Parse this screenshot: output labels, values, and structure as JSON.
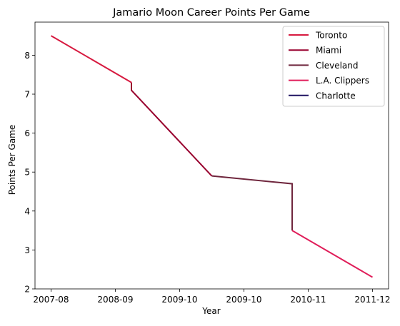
{
  "chart_data": {
    "type": "line",
    "title": "Jamario Moon Career Points Per Game",
    "xlabel": "Year",
    "ylabel": "Points Per Game",
    "x_tick_labels": [
      "2007-08",
      "2008-09",
      "2009-10",
      "2009-10",
      "2010-11",
      "2011-12"
    ],
    "ylim": [
      2,
      8.85
    ],
    "y_ticks": [
      2,
      3,
      4,
      5,
      6,
      7,
      8
    ],
    "grid": false,
    "legend_position": "top-right",
    "series": [
      {
        "name": "Toronto",
        "color": "#d7193f",
        "x": [
          0,
          2.5
        ],
        "y": [
          8.5,
          7.3
        ]
      },
      {
        "name": "Miami",
        "color": "#98002e",
        "x": [
          2.5,
          2.5,
          5
        ],
        "y": [
          7.3,
          7.1,
          4.9
        ]
      },
      {
        "name": "Cleveland",
        "color": "#6f263d",
        "x": [
          5,
          7.5,
          7.5
        ],
        "y": [
          4.9,
          4.7,
          3.5
        ]
      },
      {
        "name": "L.A. Clippers",
        "color": "#e01e5a",
        "x": [
          7.5,
          10
        ],
        "y": [
          3.5,
          2.3
        ]
      },
      {
        "name": "Charlotte",
        "color": "#1d1160",
        "x": [],
        "y": []
      }
    ],
    "xlim": [
      -0.5,
      10.5
    ],
    "x_tick_positions": [
      0,
      2,
      4,
      6,
      8,
      10
    ]
  }
}
